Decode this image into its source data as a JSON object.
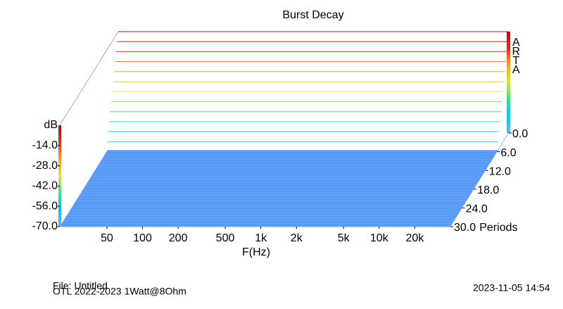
{
  "chart_data": {
    "type": "waterfall",
    "title": "Burst Decay",
    "ylabel": "dB",
    "xlabel": "F(Hz)",
    "zlabel": "Periods",
    "brand": "ARTA",
    "file": "File: Untitled",
    "note": "OTL 2022-2023 1Watt@8Ohm",
    "timestamp": "2023-11-05  14:54",
    "log_x": true,
    "xlim": [
      20,
      40000
    ],
    "xticks": [
      50,
      100,
      200,
      500,
      {
        "value": 1000,
        "label": "1k"
      },
      {
        "value": 2000,
        "label": "2k"
      },
      {
        "value": 5000,
        "label": "5k"
      },
      {
        "value": 10000,
        "label": "10k"
      },
      {
        "value": 20000,
        "label": "20k"
      }
    ],
    "ylim": [
      -70,
      0
    ],
    "yticks": [
      {
        "value": -70,
        "label": "-70.0"
      },
      {
        "value": -56,
        "label": "-56.0"
      },
      {
        "value": -42,
        "label": "-42.0"
      },
      {
        "value": -28,
        "label": "-28.0"
      },
      {
        "value": -14,
        "label": "-14.0"
      }
    ],
    "zlim": [
      0,
      30
    ],
    "zticks": [
      {
        "value": 0,
        "label": "0.0"
      },
      {
        "value": 6,
        "label": "6.0"
      },
      {
        "value": 12,
        "label": "12.0"
      },
      {
        "value": 18,
        "label": "18.0"
      },
      {
        "value": 24,
        "label": "24.0"
      },
      {
        "value": 30,
        "label": "30.0"
      }
    ],
    "colormap": [
      "#6fb0ff",
      "#00c8ff",
      "#40e080",
      "#e0e040",
      "#ffa020",
      "#e03020",
      "#a01010"
    ],
    "floor_color": "#4a8cf0",
    "z": [
      0,
      0.5,
      1,
      1.5,
      2,
      2.5,
      3,
      3.5,
      4,
      4.5,
      5,
      5.5,
      6,
      6.5,
      7,
      7.5,
      8,
      8.5,
      9,
      9.5,
      10,
      10.5,
      11,
      11.5,
      12,
      12.5,
      13,
      13.5,
      14,
      14.5,
      15,
      15.5,
      16,
      16.5,
      17,
      17.5,
      18,
      18.5,
      19,
      19.5,
      20,
      20.5,
      21,
      21.5,
      22,
      22.5,
      23,
      23.5,
      24,
      24.5,
      25,
      25.5,
      26,
      26.5,
      27,
      27.5,
      28,
      28.5,
      29,
      29.5,
      30
    ],
    "values": [
      0,
      -5.8,
      -11.7,
      -17.5,
      -23.3,
      -29.2,
      -35,
      -40.8,
      -46.7,
      -52.5,
      -58.3,
      -64.2,
      -70,
      -70,
      -70,
      -70,
      -70,
      -70,
      -70,
      -70,
      -70,
      -70,
      -70,
      -70,
      -70,
      -70,
      -70,
      -70,
      -70,
      -70,
      -70,
      -70,
      -70,
      -70,
      -70,
      -70,
      -70,
      -70,
      -70,
      -70,
      -70,
      -70,
      -70,
      -70,
      -70,
      -70,
      -70,
      -70,
      -70,
      -70,
      -70,
      -70,
      -70,
      -70,
      -70,
      -70,
      -70,
      -70,
      -70,
      -70,
      -70
    ]
  }
}
